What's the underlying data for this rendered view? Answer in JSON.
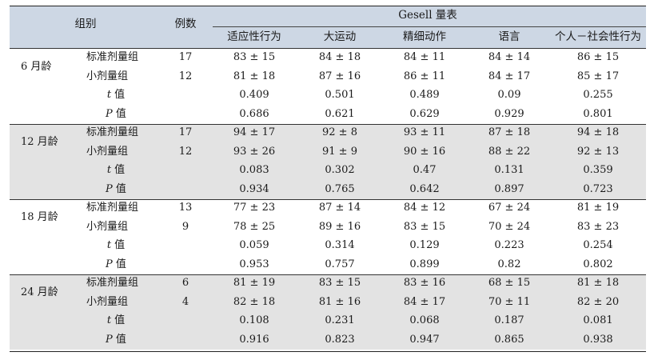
{
  "header": {
    "group_col": "组别",
    "count_col": "例数",
    "gesell_title": "Gesell 量表",
    "sub_cols": [
      "适应性行为",
      "大运动",
      "精细动作",
      "语言",
      "个人－社会性行为"
    ]
  },
  "groups": [
    {
      "age": "6 月龄",
      "rows": [
        {
          "label": "标准剂量组",
          "n": "17",
          "vals": [
            "83 ± 15",
            "84 ± 18",
            "84 ± 11",
            "84 ± 14",
            "86 ± 15"
          ]
        },
        {
          "label": "小剂量组",
          "n": "12",
          "vals": [
            "81 ± 18",
            "87 ± 16",
            "86 ± 11",
            "84 ± 17",
            "85 ± 17"
          ]
        },
        {
          "stat": "t",
          "suffix": " 值",
          "n": "",
          "vals": [
            "0.409",
            "0.501",
            "0.489",
            "0.09",
            "0.255"
          ]
        },
        {
          "stat": "P",
          "suffix": " 值",
          "n": "",
          "vals": [
            "0.686",
            "0.621",
            "0.629",
            "0.929",
            "0.801"
          ]
        }
      ]
    },
    {
      "age": "12 月龄",
      "rows": [
        {
          "label": "标准剂量组",
          "n": "17",
          "vals": [
            "94 ± 17",
            "92 ± 8",
            "93 ± 11",
            "87 ± 18",
            "94 ± 18"
          ]
        },
        {
          "label": "小剂量组",
          "n": "12",
          "vals": [
            "93 ± 26",
            "91 ± 9",
            "90 ± 16",
            "88 ± 22",
            "92 ± 13"
          ]
        },
        {
          "stat": "t",
          "suffix": " 值",
          "n": "",
          "vals": [
            "0.083",
            "0.302",
            "0.47",
            "0.131",
            "0.359"
          ]
        },
        {
          "stat": "P",
          "suffix": " 值",
          "n": "",
          "vals": [
            "0.934",
            "0.765",
            "0.642",
            "0.897",
            "0.723"
          ]
        }
      ]
    },
    {
      "age": "18 月龄",
      "rows": [
        {
          "label": "标准剂量组",
          "n": "13",
          "vals": [
            "77 ± 23",
            "87 ± 14",
            "84 ± 12",
            "67 ± 24",
            "81 ± 19"
          ]
        },
        {
          "label": "小剂量组",
          "n": "9",
          "vals": [
            "78 ± 25",
            "89 ± 16",
            "83 ± 15",
            "70 ± 24",
            "83 ± 23"
          ]
        },
        {
          "stat": "t",
          "suffix": " 值",
          "n": "",
          "vals": [
            "0.059",
            "0.314",
            "0.129",
            "0.223",
            "0.254"
          ]
        },
        {
          "stat": "P",
          "suffix": " 值",
          "n": "",
          "vals": [
            "0.953",
            "0.757",
            "0.899",
            "0.82",
            "0.802"
          ]
        }
      ]
    },
    {
      "age": "24 月龄",
      "rows": [
        {
          "label": "标准剂量组",
          "n": "6",
          "vals": [
            "81 ± 19",
            "83 ± 15",
            "83 ± 16",
            "68 ± 15",
            "81 ± 18"
          ]
        },
        {
          "label": "小剂量组",
          "n": "4",
          "vals": [
            "82 ± 18",
            "81 ± 16",
            "84 ± 17",
            "70 ± 11",
            "82 ± 20"
          ]
        },
        {
          "stat": "t",
          "suffix": " 值",
          "n": "",
          "vals": [
            "0.108",
            "0.231",
            "0.068",
            "0.187",
            "0.081"
          ]
        },
        {
          "stat": "P",
          "suffix": " 值",
          "n": "",
          "vals": [
            "0.916",
            "0.823",
            "0.947",
            "0.865",
            "0.938"
          ]
        }
      ]
    }
  ]
}
